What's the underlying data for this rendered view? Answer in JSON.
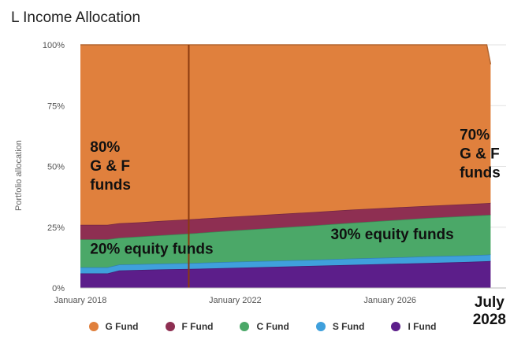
{
  "chart_data": {
    "type": "area",
    "stacked": true,
    "title": "L Income Allocation",
    "ylabel": "Portfolio allocation",
    "ylim": [
      0,
      100
    ],
    "x_range": [
      2018.0,
      2029.0
    ],
    "y_ticks": [
      0,
      25,
      50,
      75,
      100
    ],
    "y_tick_labels": [
      "0%",
      "25%",
      "50%",
      "75%",
      "100%"
    ],
    "x_ticks": [
      2018,
      2022,
      2026
    ],
    "x_tick_labels": [
      "January 2018",
      "January 2022",
      "January 2026"
    ],
    "x": [
      2018.0,
      2018.7,
      2019.0,
      2019.5,
      2020.0,
      2021.0,
      2022.0,
      2023.0,
      2024.0,
      2025.0,
      2026.0,
      2027.0,
      2028.0,
      2028.5,
      2028.6
    ],
    "series": [
      {
        "name": "I Fund",
        "color": "#5c1e8a",
        "values": [
          6.0,
          6.0,
          7.2,
          7.4,
          7.6,
          7.9,
          8.3,
          8.7,
          9.1,
          9.5,
          9.9,
          10.3,
          10.7,
          11.0,
          11.1
        ]
      },
      {
        "name": "S Fund",
        "color": "#3fa0dc",
        "values": [
          2.5,
          2.5,
          2.4,
          2.4,
          2.4,
          2.4,
          2.5,
          2.5,
          2.5,
          2.6,
          2.6,
          2.7,
          2.7,
          2.7,
          2.7
        ]
      },
      {
        "name": "C Fund",
        "color": "#4ba868",
        "values": [
          11.5,
          11.5,
          11.0,
          11.3,
          11.6,
          12.3,
          12.9,
          13.5,
          14.1,
          14.7,
          15.3,
          15.8,
          16.2,
          16.3,
          16.3
        ]
      },
      {
        "name": "F Fund",
        "color": "#8e2f52",
        "values": [
          6.0,
          6.0,
          6.0,
          5.9,
          5.9,
          5.8,
          5.7,
          5.6,
          5.5,
          5.4,
          5.2,
          5.0,
          4.9,
          4.9,
          4.9
        ]
      },
      {
        "name": "G Fund",
        "color": "#e0803d",
        "values": [
          74.0,
          74.0,
          73.4,
          73.0,
          72.5,
          71.6,
          70.6,
          69.7,
          68.8,
          67.8,
          67.0,
          66.2,
          65.5,
          65.1,
          57.0
        ]
      }
    ],
    "marker_line": {
      "x": 2020.8,
      "color": "#8b3a0f"
    },
    "annotations": [
      {
        "text": [
          "80%",
          "G & F",
          "funds"
        ],
        "x": 2018.25,
        "y": 56,
        "anchor": "start"
      },
      {
        "text": [
          "70%",
          "G & F",
          "funds"
        ],
        "x": 2027.8,
        "y": 61,
        "anchor": "start"
      },
      {
        "text": [
          "20% equity funds"
        ],
        "x": 2018.25,
        "y": 14,
        "anchor": "start"
      },
      {
        "text": [
          "30% equity funds"
        ],
        "x": 2027.65,
        "y": 20,
        "anchor": "end"
      }
    ],
    "end_label": [
      "July",
      "2028"
    ],
    "legend": [
      "G Fund",
      "F Fund",
      "C Fund",
      "S Fund",
      "I Fund"
    ],
    "legend_position": "bottom"
  }
}
